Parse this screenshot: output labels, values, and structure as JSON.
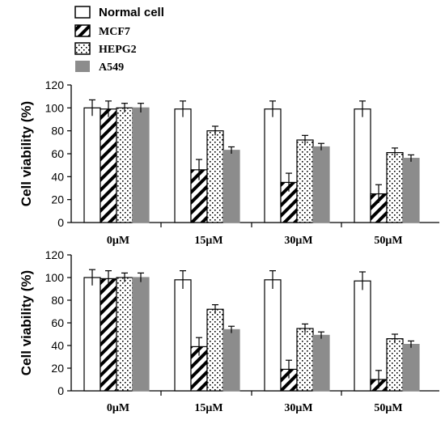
{
  "legend": [
    {
      "name": "Normal cell",
      "pattern": "open"
    },
    {
      "name": "MCF7",
      "pattern": "hatch"
    },
    {
      "name": "HEPG2",
      "pattern": "dots"
    },
    {
      "name": "A549",
      "pattern": "gray"
    }
  ],
  "colors": {
    "gray_fill": "#8c8c8c",
    "stroke": "#000000"
  },
  "chart_data": [
    {
      "type": "bar",
      "title": "",
      "xlabel": "",
      "ylabel": "Cell viability (%)",
      "ylim": [
        0,
        120
      ],
      "yticks": [
        "0",
        "20",
        "40",
        "60",
        "80",
        "100",
        "120"
      ],
      "categories": [
        "0μM",
        "15μM",
        "30μM",
        "50μM"
      ],
      "series": [
        {
          "name": "Normal cell",
          "values": [
            100,
            99,
            99,
            99
          ],
          "errors": [
            7,
            7,
            7,
            7
          ]
        },
        {
          "name": "MCF7",
          "values": [
            99,
            46,
            35,
            25
          ],
          "errors": [
            7,
            9,
            8,
            8
          ]
        },
        {
          "name": "HEPG2",
          "values": [
            100,
            80,
            72,
            61
          ],
          "errors": [
            4,
            4,
            4,
            4
          ]
        },
        {
          "name": "A549",
          "values": [
            100,
            63,
            66,
            56
          ],
          "errors": [
            4,
            3,
            3,
            3
          ]
        }
      ]
    },
    {
      "type": "bar",
      "title": "",
      "xlabel": "",
      "ylabel": "Cell viability (%)",
      "ylim": [
        0,
        120
      ],
      "yticks": [
        "0",
        "20",
        "40",
        "60",
        "80",
        "100",
        "120"
      ],
      "categories": [
        "0μM",
        "15μM",
        "30μM",
        "50μM"
      ],
      "series": [
        {
          "name": "Normal cell",
          "values": [
            100,
            98,
            98,
            97
          ],
          "errors": [
            7,
            8,
            8,
            8
          ]
        },
        {
          "name": "MCF7",
          "values": [
            99,
            39,
            19,
            10
          ],
          "errors": [
            7,
            8,
            8,
            8
          ]
        },
        {
          "name": "HEPG2",
          "values": [
            100,
            72,
            55,
            46
          ],
          "errors": [
            4,
            4,
            4,
            4
          ]
        },
        {
          "name": "A549",
          "values": [
            100,
            54,
            49,
            41
          ],
          "errors": [
            4,
            3,
            3,
            3
          ]
        }
      ]
    }
  ]
}
